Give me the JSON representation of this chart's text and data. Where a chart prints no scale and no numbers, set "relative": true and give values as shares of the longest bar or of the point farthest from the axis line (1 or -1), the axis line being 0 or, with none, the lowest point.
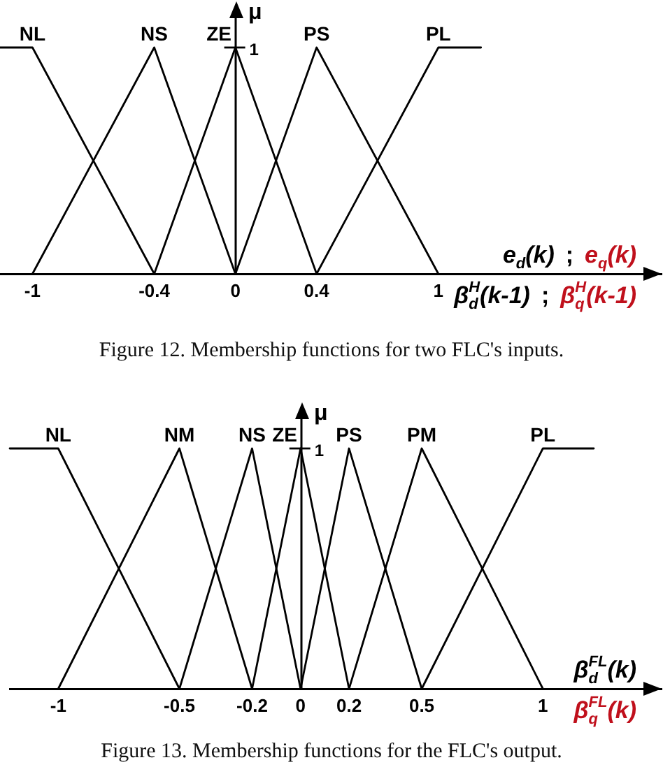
{
  "chart_data": [
    {
      "type": "line",
      "relative": true,
      "xlabel": "e$_{d}$(k) ; e$_{q}$(k)\nβ$_{d}$$^{H}$(k-1) ; β$_{q}$$^{H}$(k-1)",
      "ylabel": "μ",
      "xlim": [
        -1.16,
        2.1
      ],
      "xticks": [
        -1,
        -0.4,
        0,
        0.4,
        1
      ],
      "series": [
        {
          "name": "NL",
          "color": "#000000",
          "x": [
            -1.16,
            -1,
            -0.4
          ],
          "values": [
            1,
            1,
            0
          ]
        },
        {
          "name": "NS",
          "color": "#000000",
          "x": [
            -1,
            -0.4,
            0
          ],
          "values": [
            0,
            1,
            0
          ]
        },
        {
          "name": "ZE",
          "color": "#000000",
          "x": [
            -0.4,
            0,
            0.4
          ],
          "values": [
            0,
            1,
            0
          ]
        },
        {
          "name": "PS",
          "color": "#000000",
          "x": [
            0,
            0.4,
            1
          ],
          "values": [
            0,
            1,
            0
          ]
        },
        {
          "name": "PL",
          "color": "#000000",
          "x": [
            0.4,
            1,
            1.21
          ],
          "values": [
            0,
            1,
            1
          ]
        }
      ],
      "annotations": [
        {
          "text": "1",
          "x": 0,
          "y": 1
        },
        "Figure 12. Membership functions for two FLC's inputs."
      ]
    },
    {
      "type": "line",
      "relative": true,
      "xlabel": "β$_{d}$$^{FL}$(k)\nβ$_{q}$$^{FL}$(k)",
      "ylabel": "μ",
      "xlim": [
        -1.2,
        1.49
      ],
      "xticks": [
        -1,
        -0.5,
        -0.2,
        0,
        0.2,
        0.5,
        1
      ],
      "series": [
        {
          "name": "NL",
          "color": "#000000",
          "x": [
            -1.2,
            -1,
            -0.5
          ],
          "values": [
            1,
            1,
            0
          ]
        },
        {
          "name": "NM",
          "color": "#000000",
          "x": [
            -1,
            -0.5,
            -0.2
          ],
          "values": [
            0,
            1,
            0
          ]
        },
        {
          "name": "NS",
          "color": "#000000",
          "x": [
            -0.5,
            -0.2,
            0
          ],
          "values": [
            0,
            1,
            0
          ]
        },
        {
          "name": "ZE",
          "color": "#000000",
          "x": [
            -0.2,
            0,
            0.2
          ],
          "values": [
            0,
            1,
            0
          ]
        },
        {
          "name": "PS",
          "color": "#000000",
          "x": [
            0,
            0.2,
            0.5
          ],
          "values": [
            0,
            1,
            0
          ]
        },
        {
          "name": "PM",
          "color": "#000000",
          "x": [
            0.2,
            0.5,
            1
          ],
          "values": [
            0,
            1,
            0
          ]
        },
        {
          "name": "PL",
          "color": "#000000",
          "x": [
            0.5,
            1,
            1.21
          ],
          "values": [
            0,
            1,
            1
          ]
        }
      ],
      "annotations": [
        {
          "text": "1",
          "x": 0,
          "y": 1
        },
        "Figure 13. Membership functions for the FLC's output."
      ]
    }
  ]
}
